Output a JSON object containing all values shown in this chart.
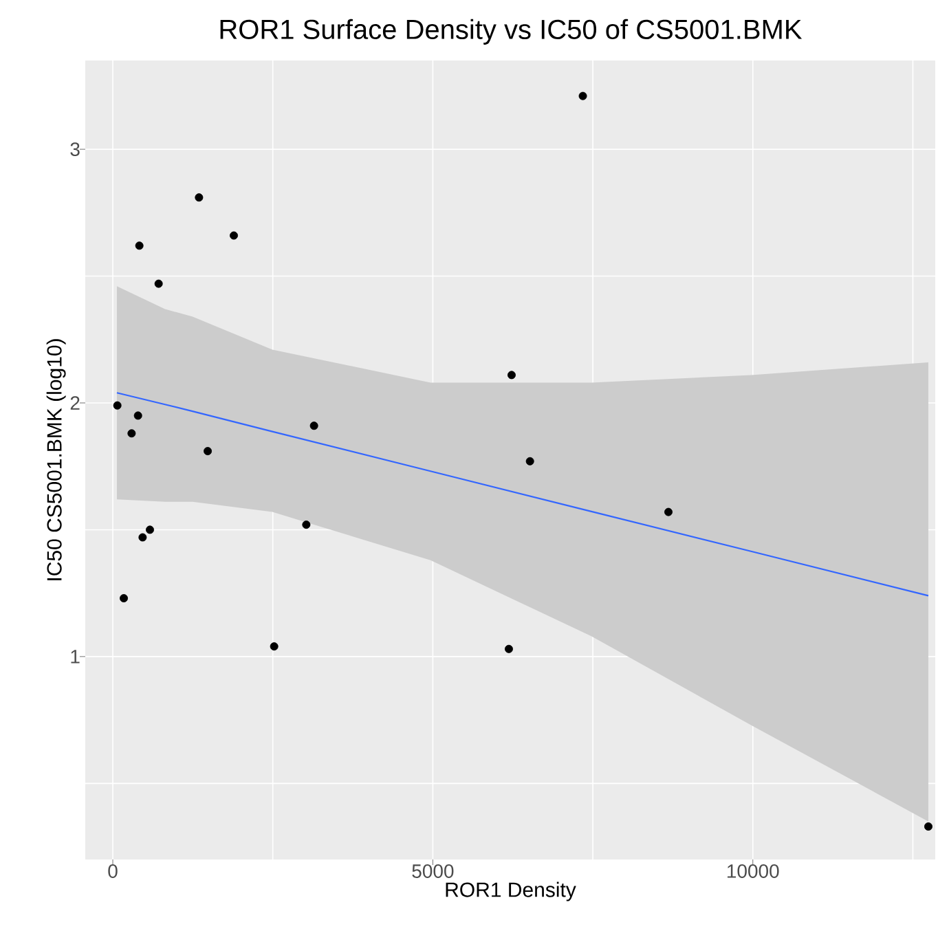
{
  "chart_data": {
    "type": "scatter",
    "title": "ROR1 Surface Density vs IC50 of CS5001.BMK",
    "xlabel": "ROR1 Density",
    "ylabel": "IC50 CS5001.BMK (log10)",
    "xlim": [
      -430,
      12850
    ],
    "ylim": [
      0.2,
      3.35
    ],
    "xticks": [
      0,
      {
        "value": 2500,
        "label": null
      },
      5000,
      {
        "value": 7500,
        "label": null
      },
      10000,
      {
        "value": 12500,
        "label": null
      }
    ],
    "yticks": [
      {
        "value": 0.5,
        "label": null
      },
      1,
      {
        "value": 1.5,
        "label": null
      },
      2,
      {
        "value": 2.5,
        "label": null
      },
      3
    ],
    "grid": true,
    "series": [
      {
        "type": "line",
        "color": "#3366ff",
        "x": [
          64,
          816,
          1246,
          2493,
          4964,
          7477,
          9970,
          12742
        ],
        "values": [
          2.04,
          1.994,
          1.967,
          1.887,
          1.731,
          1.572,
          1.415,
          1.24
        ],
        "lower": [
          1.62,
          1.61,
          1.61,
          1.57,
          1.38,
          1.08,
          0.73,
          0.35
        ],
        "upper": [
          2.46,
          2.37,
          2.34,
          2.21,
          2.08,
          2.08,
          2.11,
          2.16
        ]
      },
      {
        "color": "#000000",
        "x": [
          71,
          394,
          294,
          415,
          716,
          1347,
          1891,
          1483,
          580,
          466,
          172,
          2521,
          3144,
          3023,
          6231,
          6518,
          8681,
          6188,
          12742,
          7344
        ],
        "values": [
          1.99,
          1.95,
          1.88,
          2.62,
          2.47,
          2.81,
          2.66,
          1.81,
          1.5,
          1.47,
          1.23,
          1.04,
          1.91,
          1.52,
          2.11,
          1.77,
          1.57,
          1.03,
          0.33,
          3.21
        ]
      }
    ]
  }
}
